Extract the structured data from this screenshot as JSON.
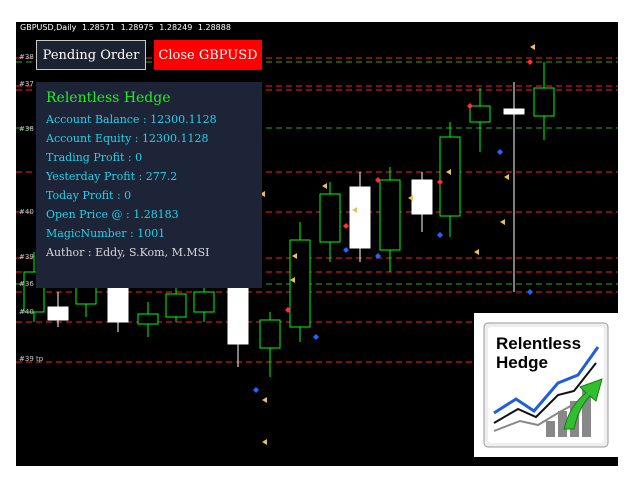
{
  "chart": {
    "symbol": "GBPUSD,Daily",
    "ohlc": [
      "1.28571",
      "1.28975",
      "1.28249",
      "1.28888"
    ],
    "line_labels": [
      "#38",
      "#37",
      "#38",
      "#40",
      "#39",
      "#36",
      "#40",
      "#39 tp"
    ]
  },
  "buttons": {
    "pending_label": "Pending Order",
    "close_label": "Close GBPUSD"
  },
  "panel": {
    "title": "Relentless Hedge",
    "lines": [
      "Account Balance : 12300.1128",
      "Account Equity : 12300.1128",
      "Trading Profit : 0",
      "Yesterday Profit : 277.2",
      "Today Profit : 0",
      "Open Price @ : 1.28183",
      "MagicNumber : 1001",
      "Author : Eddy, S.Kom, M.MSI"
    ]
  },
  "logo": {
    "line1": "Relentless",
    "line2": "Hedge"
  },
  "colors": {
    "background": "#000000",
    "bull_candle": "#00ff00",
    "bear_candle": "#ffffff",
    "dash_red": "#ff2020",
    "dash_green": "#22aa22",
    "panel_bg": "#1d2438",
    "panel_text": "#22d2e8",
    "panel_title": "#22ee22",
    "close_button": "#ff0000"
  }
}
